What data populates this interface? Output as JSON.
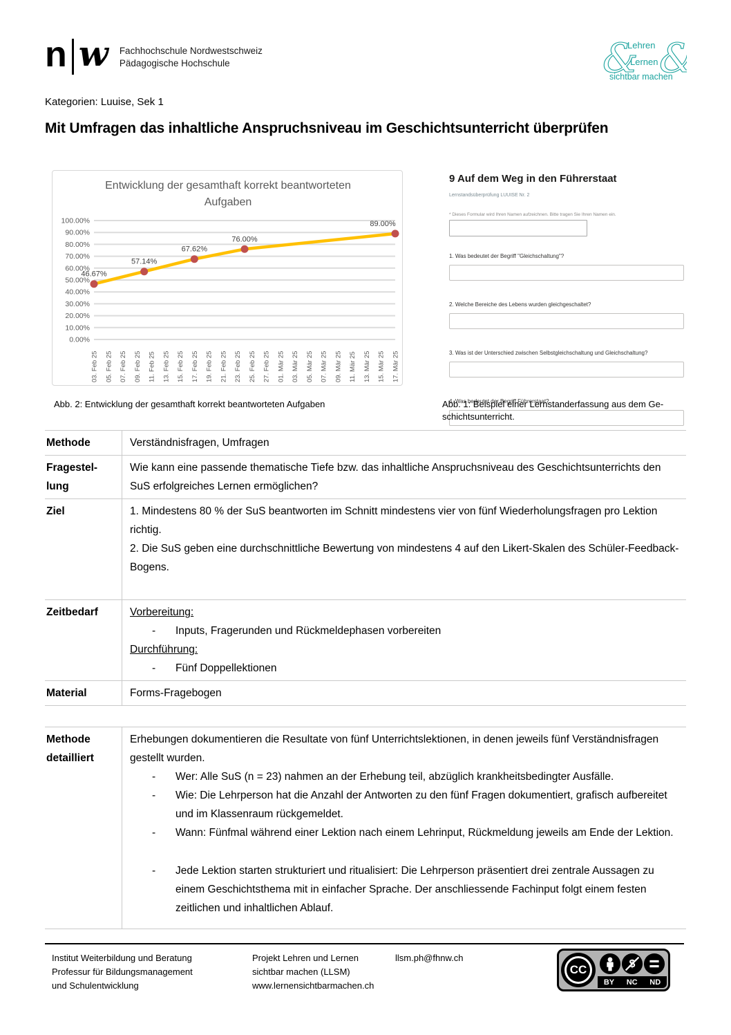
{
  "header": {
    "fhnw_logo": {
      "letter_n": "n",
      "letter_w": "w",
      "line1": "Fachhochschule Nordwestschweiz",
      "line2": "Pädagogische Hochschule"
    },
    "llsm_logo": {
      "ampersand": "&",
      "line1": "Lehren",
      "line2": "Lernen",
      "line3": "sichtbar machen",
      "color": "#1ba39e"
    }
  },
  "kategorien": "Kategorien: Luuise, Sek 1",
  "title": "Mit Umfragen das inhaltliche Anspruchsniveau im Geschichtsunterricht überprüfen",
  "chart_data": {
    "type": "line",
    "title": "Entwicklung der gesamthaft korrekt beantworteten Aufgaben",
    "categories": [
      "03. Feb 25",
      "05. Feb 25",
      "07. Feb 25",
      "09. Feb 25",
      "11. Feb 25",
      "13. Feb 25",
      "15. Feb 25",
      "17. Feb 25",
      "19. Feb 25",
      "21. Feb 25",
      "23. Feb 25",
      "25. Feb 25",
      "27. Feb 25",
      "01. Mär 25",
      "03. Mär 25",
      "05. Mär 25",
      "07. Mär 25",
      "09. Mär 25",
      "11. Mär 25",
      "13. Mär 25",
      "15. Mär 25",
      "17. Mär 25"
    ],
    "series": [
      {
        "points": [
          {
            "category_index": 0,
            "value": 46.67,
            "label": "46.67%"
          },
          {
            "category_index": 3.5,
            "value": 57.14,
            "label": "57.14%"
          },
          {
            "category_index": 7,
            "value": 67.62,
            "label": "67.62%"
          },
          {
            "category_index": 10.5,
            "value": 76.0,
            "label": "76.00%"
          },
          {
            "category_index": 21,
            "value": 89.0,
            "label": "89.00%"
          }
        ]
      }
    ],
    "ylim": [
      0,
      100
    ],
    "ytick_step": 10,
    "ytick_format": "0.00%",
    "grid": true,
    "legend": false,
    "line_color": "#ffc000",
    "marker_color": "#c0504d",
    "gridline_color": "#dcdcdc",
    "axis_text_color": "#595959",
    "data_label_color": "#404040"
  },
  "figures": {
    "caption_left": "Abb. 2: Entwicklung der gesamthaft korrekt beantworteten Aufgaben",
    "caption_right": "Abb. 1: Beispiel einer Lernstanderfassung aus dem Ge­schichtsunterricht."
  },
  "form": {
    "title": "9 Auf dem Weg in den Führerstaat",
    "subtitle": "Lernstandsüberprüfung LUUISE Nr. 2",
    "privacy_note": "* Dieses Formular wird Ihren Namen aufzeichnen. Bitte tragen Sie Ihren Namen ein.",
    "name_input_value": "",
    "questions": [
      {
        "label": "1. Was bedeutet der Begriff \"Gleichschaltung\"?",
        "answer_value": ""
      },
      {
        "label": "2. Welche Bereiche des Lebens wurden gleichgeschaltet?",
        "answer_value": ""
      },
      {
        "label": "3. Was ist der Unterschied zwischen Selbstgleichschaltung und Gleichschaltung?",
        "answer_value": ""
      },
      {
        "label": "4. Was bedeutet der Begriff Führerstaat?",
        "answer_value": ""
      }
    ]
  },
  "main_table": {
    "sections": [
      {
        "rows": [
          {
            "id": "methode",
            "label": "Methode",
            "blocks": [
              {
                "t": "p",
                "text": "Verständnisfragen, Umfragen"
              }
            ]
          },
          {
            "id": "fragestellung",
            "label": "Fragestel­lung",
            "blocks": [
              {
                "t": "p",
                "text": "Wie kann eine passende thematische Tiefe bzw. das inhaltliche Anspruchsniveau des Geschichtsun­terrichts den SuS erfolgreiches Lernen ermöglichen?"
              }
            ]
          },
          {
            "id": "ziel",
            "label": "Ziel",
            "blocks": [
              {
                "t": "p",
                "text": "1. Mindestens 80 % der SuS beantworten im Schnitt mindestens vier von fünf Wiederholungsfragen pro Lektion richtig."
              },
              {
                "t": "p",
                "text": "2. Die SuS geben eine durchschnittliche Bewertung von mindestens 4 auf den Likert-Skalen des Schü­ler-Feedback-Bogens."
              }
            ]
          },
          {
            "id": "zeitbedarf",
            "label": "Zeitbedarf",
            "blocks": [
              {
                "t": "u",
                "text": "Vorbereitung:"
              },
              {
                "t": "li",
                "text": "Inputs, Fragerunden und Rückmeldephasen vorbereiten"
              },
              {
                "t": "u",
                "text": "Durchführung:"
              },
              {
                "t": "li",
                "text": "Fünf Doppellektionen"
              }
            ]
          },
          {
            "id": "material",
            "label": "Material",
            "blocks": [
              {
                "t": "p",
                "text": "Forms-Fragebogen"
              }
            ]
          }
        ]
      },
      {
        "rows": [
          {
            "id": "methode-detailliert",
            "label": "Methode detailliert",
            "blocks": [
              {
                "t": "p",
                "text": "Erhebungen dokumentieren die Resultate von fünf Unterrichtslektionen, in denen jeweils fünf Ver­ständnisfragen gestellt wurden."
              },
              {
                "t": "li",
                "text": "Wer: Alle SuS (n = 23) nahmen an der Erhebung teil, abzüglich krankheitsbedingter Ausfälle."
              },
              {
                "t": "li",
                "text": "Wie: Die Lehrperson hat die Anzahl der Antworten zu den fünf Fragen dokumentiert, grafisch aufbereitet und im Klassenraum rückgemeldet."
              },
              {
                "t": "li",
                "text": "Wann: Fünfmal während einer Lektion nach einem Lehrinput, Rückmeldung jeweils am Ende der Lektion."
              },
              {
                "t": "gap"
              },
              {
                "t": "li",
                "text": "Jede Lektion starten strukturiert und ritualisiert: Die Lehrperson präsentiert drei zentrale Aussagen zu einem Geschichtsthema mit in einfacher Sprache. Der anschliessende Fachinput folgt einem festen zeitlichen und inhaltlichen Ablauf."
              }
            ]
          }
        ]
      }
    ]
  },
  "footer": {
    "columns": [
      [
        "Institut Weiterbildung und Beratung",
        "Professur für Bildungsmanagement",
        "und Schulentwicklung"
      ],
      [
        "Projekt Lehren und Lernen",
        "sichtbar machen (LLSM)",
        "www.lernensichtbarmachen.ch"
      ],
      [
        "llsm.ph@fhnw.ch"
      ]
    ],
    "cc_badge": {
      "cc": "CC",
      "labels": [
        "BY",
        "NC",
        "ND"
      ]
    }
  }
}
